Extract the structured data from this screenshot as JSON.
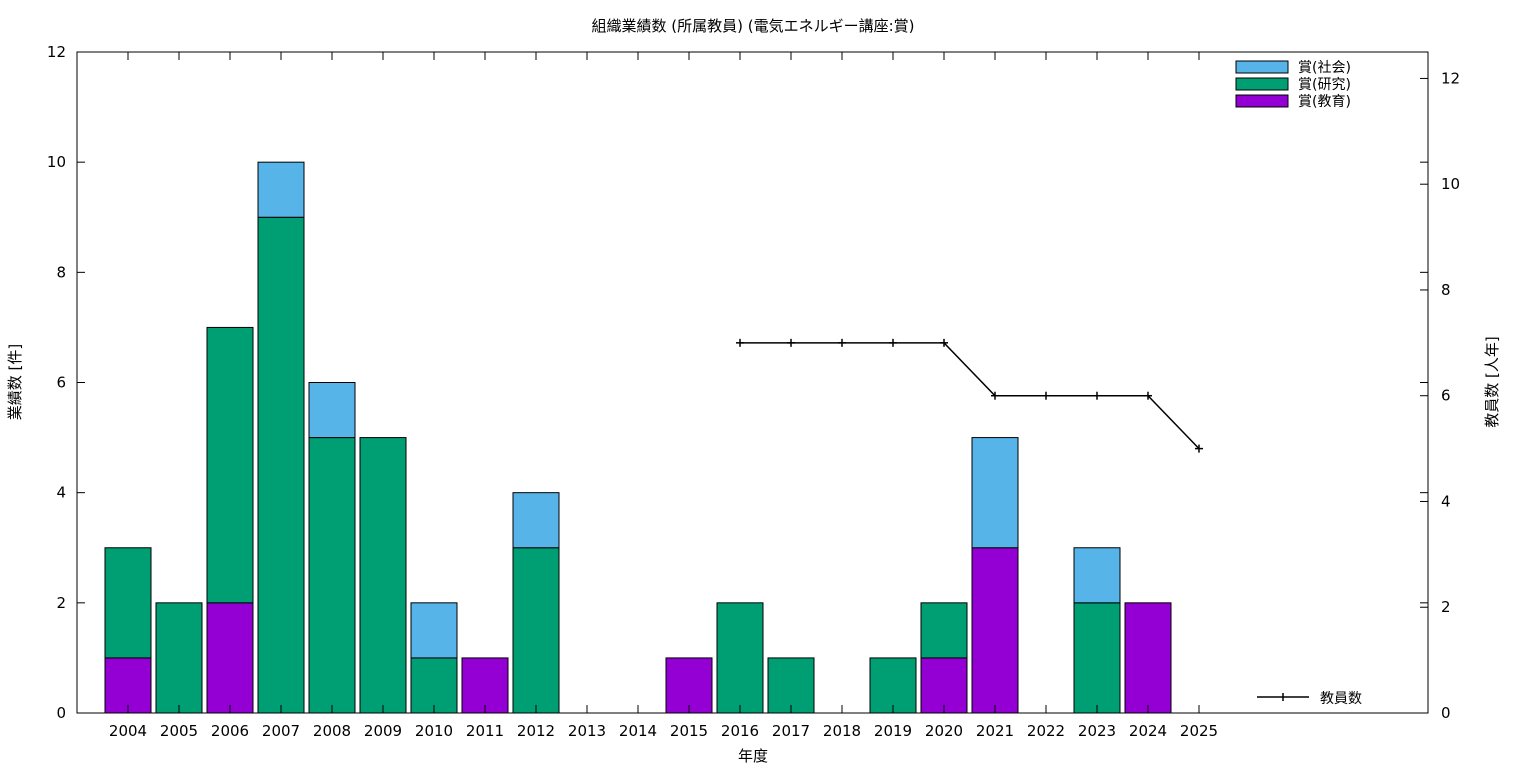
{
  "chart_data": {
    "type": "bar",
    "stacked": true,
    "title": "組織業績数 (所属教員) (電気エネルギー講座:賞)",
    "xlabel": "年度",
    "ylabel": "業績数 [件]",
    "y2label": "教員数 [人年]",
    "ylim": [
      0,
      12
    ],
    "y2lim": [
      0,
      12.5
    ],
    "yticks": [
      0,
      2,
      4,
      6,
      8,
      10,
      12
    ],
    "y2ticks": [
      0,
      2,
      4,
      6,
      8,
      10,
      12
    ],
    "grid": false,
    "legend_position": "top-right",
    "categories": [
      "2004",
      "2005",
      "2006",
      "2007",
      "2008",
      "2009",
      "2010",
      "2011",
      "2012",
      "2013",
      "2014",
      "2015",
      "2016",
      "2017",
      "2018",
      "2019",
      "2020",
      "2021",
      "2022",
      "2023",
      "2024",
      "2025"
    ],
    "series": [
      {
        "name": "賞(教育)",
        "color": "#9400d3",
        "values": [
          1,
          0,
          2,
          0,
          0,
          0,
          0,
          1,
          0,
          0,
          0,
          1,
          0,
          0,
          0,
          0,
          1,
          3,
          0,
          0,
          2,
          0
        ]
      },
      {
        "name": "賞(研究)",
        "color": "#009e73",
        "values": [
          2,
          2,
          5,
          9,
          5,
          5,
          1,
          0,
          3,
          0,
          0,
          0,
          2,
          1,
          0,
          1,
          1,
          0,
          0,
          2,
          0,
          0
        ]
      },
      {
        "name": "賞(社会)",
        "color": "#56b4e9",
        "values": [
          0,
          0,
          0,
          1,
          1,
          0,
          1,
          0,
          1,
          0,
          0,
          0,
          0,
          0,
          0,
          0,
          0,
          2,
          0,
          1,
          0,
          0
        ]
      }
    ],
    "line_series": {
      "name": "教員数",
      "axis": "y2",
      "color": "#000000",
      "x": [
        "2016",
        "2017",
        "2018",
        "2019",
        "2020",
        "2021",
        "2022",
        "2023",
        "2024",
        "2025"
      ],
      "values": [
        7,
        7,
        7,
        7,
        7,
        6,
        6,
        6,
        6,
        5
      ]
    }
  }
}
